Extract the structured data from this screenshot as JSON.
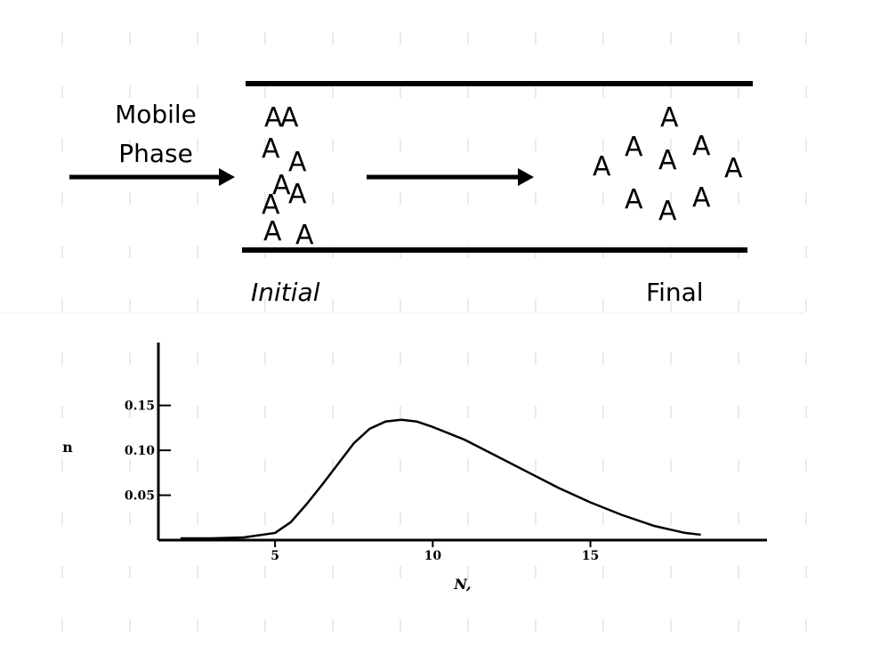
{
  "diagram": {
    "mobile_phase": [
      "Mobile",
      "Phase"
    ],
    "initial_molecules": [
      "A",
      "A",
      "A",
      "A",
      "A",
      "A",
      "A",
      "A",
      "A"
    ],
    "final_molecules": [
      "A",
      "A",
      "A",
      "A",
      "A",
      "A",
      "A",
      "A",
      "A"
    ],
    "initial_label": "Initial",
    "final_label": "Final"
  },
  "chart_data": {
    "type": "line",
    "x_label": "N,",
    "y_label": "n",
    "x": [
      2,
      3,
      4,
      5,
      5.5,
      6,
      6.5,
      7,
      7.5,
      8,
      8.5,
      9,
      9.5,
      10,
      11,
      12,
      13,
      14,
      15,
      16,
      17,
      18,
      18.5
    ],
    "series": [
      {
        "name": "n",
        "color": "#000000",
        "values": [
          0.002,
          0.002,
          0.003,
          0.008,
          0.02,
          0.04,
          0.062,
          0.085,
          0.108,
          0.124,
          0.132,
          0.134,
          0.132,
          0.126,
          0.112,
          0.094,
          0.076,
          0.058,
          0.042,
          0.028,
          0.016,
          0.008,
          0.006
        ]
      }
    ],
    "xlim": [
      1.3,
      20.6
    ],
    "ylim": [
      0,
      0.22
    ],
    "xticks": [
      5,
      10,
      15
    ],
    "yticks": [
      0.05,
      {
        "value": 0.1,
        "label": "0.10"
      },
      0.15
    ]
  }
}
